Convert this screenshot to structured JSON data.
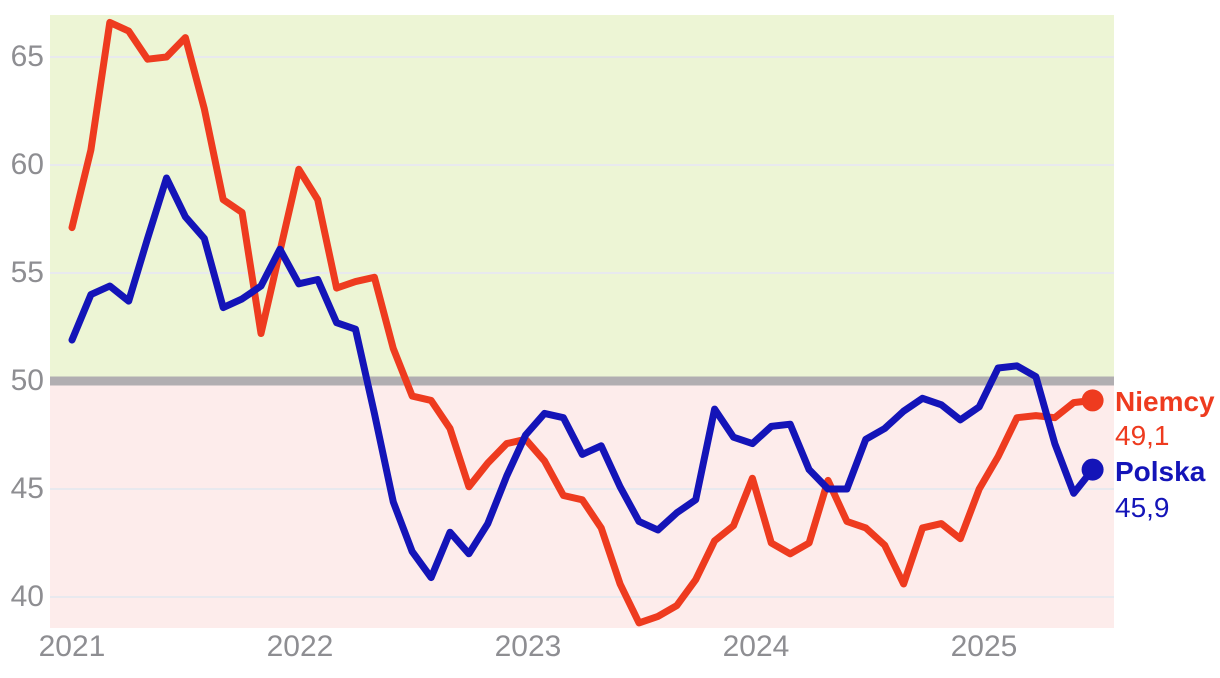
{
  "chart_data": {
    "type": "line",
    "title": "",
    "x_axis": {
      "ticks": [
        "2021",
        "2022",
        "2023",
        "2024",
        "2025"
      ],
      "unit": "month",
      "start": "2021-01",
      "end": "2025-07"
    },
    "y_axis": {
      "ticks": [
        "65",
        "60",
        "55",
        "50",
        "45",
        "40"
      ],
      "grid_values": [
        65,
        60,
        55,
        45,
        40
      ],
      "range": [
        38.5,
        67
      ]
    },
    "reference_line": {
      "value": 50,
      "color": "#b1aeb1"
    },
    "zones": {
      "above_reference_color": "#edf5d5",
      "below_reference_color": "#fdeceb"
    },
    "grid": "horizontal-only",
    "legend_position": "right-of-line-end",
    "series": [
      {
        "name": "Niemcy",
        "color": "#ee3b1f",
        "end_label": "Niemcy",
        "end_value_label": "49,1",
        "values": [
          57.1,
          60.7,
          66.6,
          66.2,
          64.9,
          65.0,
          65.9,
          62.6,
          58.4,
          57.8,
          52.2,
          56.0,
          59.8,
          58.4,
          54.3,
          54.6,
          54.8,
          51.5,
          49.3,
          49.1,
          47.8,
          45.1,
          46.2,
          47.1,
          47.3,
          46.3,
          44.7,
          44.5,
          43.2,
          40.6,
          38.8,
          39.1,
          39.6,
          40.8,
          42.6,
          43.3,
          45.5,
          42.5,
          42.0,
          42.5,
          45.4,
          43.5,
          43.2,
          42.4,
          40.6,
          43.2,
          43.4,
          42.7,
          45.0,
          46.5,
          48.3,
          48.4,
          48.3,
          49.0,
          49.1
        ]
      },
      {
        "name": "Polska",
        "color": "#1414b8",
        "end_label": "Polska",
        "end_value_label": "45,9",
        "values": [
          51.9,
          54.0,
          54.4,
          53.7,
          56.6,
          59.4,
          57.6,
          56.6,
          53.4,
          53.8,
          54.4,
          56.1,
          54.5,
          54.7,
          52.7,
          52.4,
          48.5,
          44.4,
          42.1,
          40.9,
          43.0,
          42.0,
          43.4,
          45.6,
          47.5,
          48.5,
          48.3,
          46.6,
          47.0,
          45.1,
          43.5,
          43.1,
          43.9,
          44.5,
          48.7,
          47.4,
          47.1,
          47.9,
          48.0,
          45.9,
          45.0,
          45.0,
          47.3,
          47.8,
          48.6,
          49.2,
          48.9,
          48.2,
          48.8,
          50.6,
          50.7,
          50.2,
          47.1,
          44.8,
          45.9
        ]
      }
    ],
    "colors": {
      "background": "#ffffff",
      "gridline": "#e8e9ee",
      "axis_text": "#8e8e92"
    }
  }
}
